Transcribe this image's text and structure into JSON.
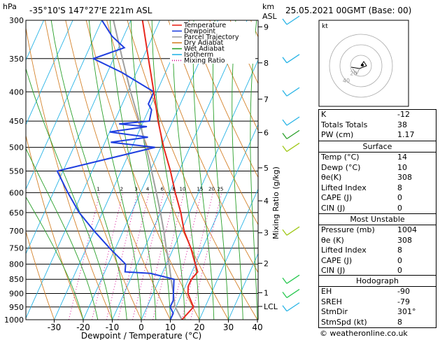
{
  "header": {
    "location": "-35°10'S 147°27'E 221m ASL",
    "datetime": "25.05.2021 00GMT (Base: 00)",
    "hpa_label": "hPa",
    "km_label": "km",
    "asl_label": "ASL"
  },
  "chart_data": {
    "type": "skew-t",
    "xlabel": "Dewpoint / Temperature (°C)",
    "ylabel_right": "Mixing Ratio (g/kg)",
    "x_ticks": [
      -30,
      -20,
      -10,
      0,
      10,
      20,
      30,
      40
    ],
    "pressure_levels": [
      300,
      350,
      400,
      450,
      500,
      550,
      600,
      650,
      700,
      750,
      800,
      850,
      900,
      950,
      1000
    ],
    "km_ticks": [
      {
        "label": "9",
        "p": 308
      },
      {
        "label": "8",
        "p": 356
      },
      {
        "label": "7",
        "p": 412
      },
      {
        "label": "6",
        "p": 471
      },
      {
        "label": "5",
        "p": 543
      },
      {
        "label": "4",
        "p": 620
      },
      {
        "label": "3",
        "p": 705
      },
      {
        "label": "2",
        "p": 797
      },
      {
        "label": "1",
        "p": 897
      },
      {
        "label": "LCL",
        "p": 948
      }
    ],
    "mixing_ratio_labels": [
      "1",
      "2",
      "3",
      "4",
      "6",
      "8",
      "10",
      "15",
      "20",
      "25"
    ],
    "legend": [
      "Temperature",
      "Dewpoint",
      "Parcel Trajectory",
      "Dry Adiabat",
      "Wet Adiabat",
      "Isotherm",
      "Mixing Ratio"
    ],
    "temperature": [
      {
        "p": 1000,
        "t": 14
      },
      {
        "p": 975,
        "t": 15
      },
      {
        "p": 950,
        "t": 16
      },
      {
        "p": 925,
        "t": 14
      },
      {
        "p": 900,
        "t": 12
      },
      {
        "p": 875,
        "t": 11
      },
      {
        "p": 850,
        "t": 11
      },
      {
        "p": 825,
        "t": 12
      },
      {
        "p": 800,
        "t": 10
      },
      {
        "p": 750,
        "t": 6
      },
      {
        "p": 700,
        "t": 1
      },
      {
        "p": 650,
        "t": -3
      },
      {
        "p": 600,
        "t": -8
      },
      {
        "p": 550,
        "t": -13
      },
      {
        "p": 500,
        "t": -19
      },
      {
        "p": 450,
        "t": -25
      },
      {
        "p": 400,
        "t": -31
      },
      {
        "p": 350,
        "t": -38
      },
      {
        "p": 300,
        "t": -46
      }
    ],
    "dewpoint": [
      {
        "p": 1000,
        "t": 10
      },
      {
        "p": 975,
        "t": 10
      },
      {
        "p": 950,
        "t": 8
      },
      {
        "p": 925,
        "t": 8
      },
      {
        "p": 900,
        "t": 7
      },
      {
        "p": 875,
        "t": 6
      },
      {
        "p": 850,
        "t": 5
      },
      {
        "p": 830,
        "t": -4
      },
      {
        "p": 825,
        "t": -13
      },
      {
        "p": 800,
        "t": -14
      },
      {
        "p": 750,
        "t": -22
      },
      {
        "p": 700,
        "t": -30
      },
      {
        "p": 650,
        "t": -38
      },
      {
        "p": 600,
        "t": -45
      },
      {
        "p": 550,
        "t": -52
      },
      {
        "p": 500,
        "t": -22
      },
      {
        "p": 490,
        "t": -38
      },
      {
        "p": 480,
        "t": -26
      },
      {
        "p": 470,
        "t": -40
      },
      {
        "p": 460,
        "t": -28
      },
      {
        "p": 455,
        "t": -38
      },
      {
        "p": 450,
        "t": -28
      },
      {
        "p": 430,
        "t": -29
      },
      {
        "p": 420,
        "t": -31
      },
      {
        "p": 400,
        "t": -31
      },
      {
        "p": 370,
        "t": -45
      },
      {
        "p": 350,
        "t": -57
      },
      {
        "p": 335,
        "t": -48
      },
      {
        "p": 320,
        "t": -54
      },
      {
        "p": 300,
        "t": -60
      }
    ],
    "parcel": [
      {
        "p": 1000,
        "t": 14
      },
      {
        "p": 948,
        "t": 9.5
      },
      {
        "p": 900,
        "t": 7
      },
      {
        "p": 850,
        "t": 4
      },
      {
        "p": 800,
        "t": 1
      },
      {
        "p": 750,
        "t": -2.5
      },
      {
        "p": 700,
        "t": -6
      },
      {
        "p": 650,
        "t": -10
      },
      {
        "p": 600,
        "t": -14.5
      },
      {
        "p": 550,
        "t": -19.5
      },
      {
        "p": 500,
        "t": -25
      },
      {
        "p": 450,
        "t": -31.5
      },
      {
        "p": 400,
        "t": -39
      },
      {
        "p": 350,
        "t": -47
      },
      {
        "p": 300,
        "t": -56
      }
    ]
  },
  "hodograph": {
    "label": "kt",
    "ring_labels": [
      "20",
      "40"
    ]
  },
  "indices": [
    {
      "label": "K",
      "value": "-12"
    },
    {
      "label": "Totals Totals",
      "value": "38"
    },
    {
      "label": "PW (cm)",
      "value": "1.17"
    }
  ],
  "surface": {
    "title": "Surface",
    "rows": [
      {
        "label": "Temp (°C)",
        "value": "14"
      },
      {
        "label": "Dewp (°C)",
        "value": "10"
      },
      {
        "label": "θe(K)",
        "value": "308"
      },
      {
        "label": "Lifted Index",
        "value": "8"
      },
      {
        "label": "CAPE (J)",
        "value": "0"
      },
      {
        "label": "CIN (J)",
        "value": "0"
      }
    ]
  },
  "most_unstable": {
    "title": "Most Unstable",
    "rows": [
      {
        "label": "Pressure (mb)",
        "value": "1004"
      },
      {
        "label": "θe (K)",
        "value": "308"
      },
      {
        "label": "Lifted Index",
        "value": "8"
      },
      {
        "label": "CAPE (J)",
        "value": "0"
      },
      {
        "label": "CIN (J)",
        "value": "0"
      }
    ]
  },
  "hodo_table": {
    "title": "Hodograph",
    "rows": [
      {
        "label": "EH",
        "value": "-90"
      },
      {
        "label": "SREH",
        "value": "-79"
      },
      {
        "label": "StmDir",
        "value": "301°"
      },
      {
        "label": "StmSpd (kt)",
        "value": "8"
      }
    ]
  },
  "copyright": "© weatheronline.co.uk",
  "colors": {
    "temperature": "#e8281e",
    "dewpoint": "#1f3fe0",
    "parcel": "#a0a0a0",
    "dry_adiabat": "#d4822a",
    "wet_adiabat": "#2aa02a",
    "isotherm": "#28b4e6",
    "mixing_ratio": "#d4008c"
  }
}
